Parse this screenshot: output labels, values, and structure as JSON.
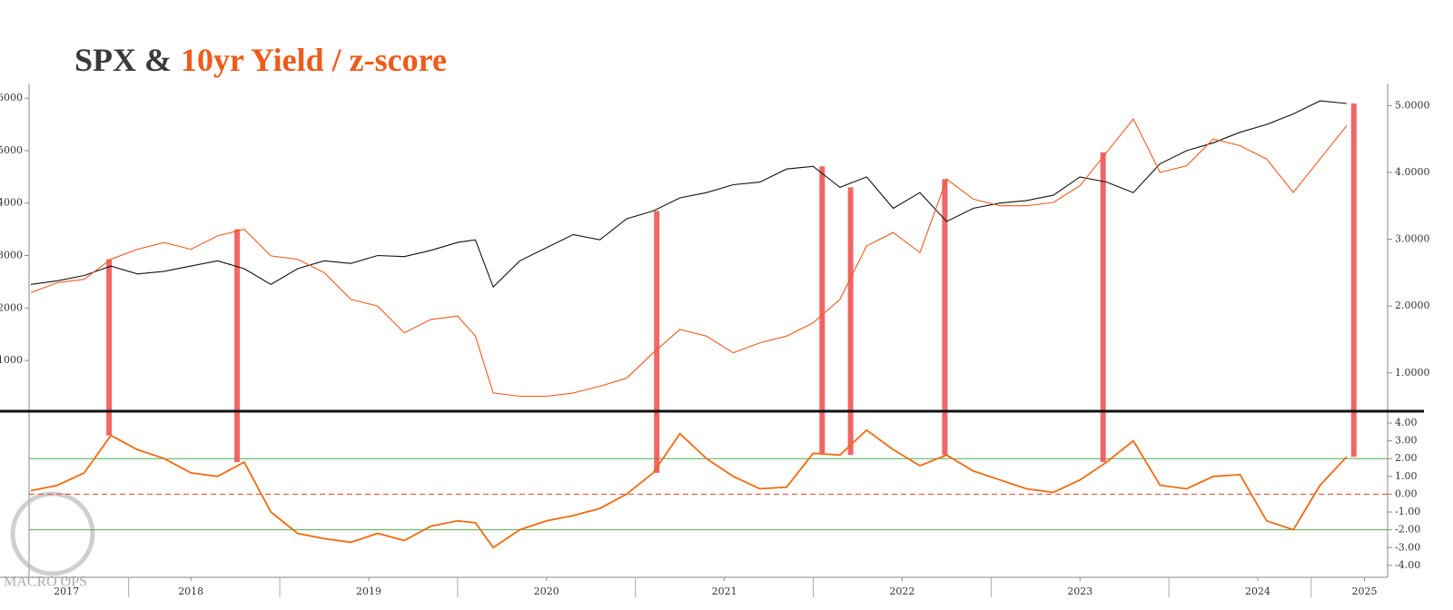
{
  "chart_data": [
    {
      "type": "line",
      "title": "SPX &",
      "subtitle": "10yr Yield / z-score",
      "x": [
        2017.6,
        2017.75,
        2017.9,
        2018.05,
        2018.2,
        2018.35,
        2018.5,
        2018.65,
        2018.8,
        2018.95,
        2019.1,
        2019.25,
        2019.4,
        2019.55,
        2019.7,
        2019.85,
        2020.0,
        2020.1,
        2020.2,
        2020.35,
        2020.5,
        2020.65,
        2020.8,
        2020.95,
        2021.1,
        2021.25,
        2021.4,
        2021.55,
        2021.7,
        2021.85,
        2022.0,
        2022.15,
        2022.3,
        2022.45,
        2022.6,
        2022.75,
        2022.9,
        2023.05,
        2023.2,
        2023.35,
        2023.5,
        2023.65,
        2023.8,
        2023.95,
        2024.1,
        2024.25,
        2024.4,
        2024.55,
        2024.7,
        2024.85,
        2025.0
      ],
      "xlim": [
        2017.59,
        2025.23
      ],
      "series": [
        {
          "color": "#111111",
          "axis": "y",
          "values": [
            2450,
            2520,
            2620,
            2800,
            2650,
            2700,
            2800,
            2900,
            2750,
            2450,
            2750,
            2900,
            2850,
            3000,
            2980,
            3100,
            3250,
            3300,
            2400,
            2900,
            3150,
            3400,
            3300,
            3700,
            3850,
            4100,
            4200,
            4350,
            4400,
            4650,
            4700,
            4300,
            4500,
            3900,
            4200,
            3650,
            3900,
            4000,
            4050,
            4150,
            4500,
            4400,
            4200,
            4750,
            5000,
            5150,
            5350,
            5500,
            5700,
            5950,
            5900
          ]
        },
        {
          "color": "#f05a1a",
          "axis": "y2",
          "values": [
            2.2,
            2.35,
            2.4,
            2.7,
            2.85,
            2.95,
            2.85,
            3.05,
            3.15,
            2.75,
            2.7,
            2.5,
            2.1,
            2.0,
            1.6,
            1.8,
            1.85,
            1.55,
            0.7,
            0.65,
            0.65,
            0.7,
            0.8,
            0.92,
            1.3,
            1.65,
            1.55,
            1.3,
            1.45,
            1.55,
            1.75,
            2.1,
            2.9,
            3.1,
            2.8,
            3.9,
            3.6,
            3.5,
            3.5,
            3.55,
            3.8,
            4.3,
            4.8,
            4.0,
            4.1,
            4.5,
            4.4,
            4.2,
            3.7,
            4.2,
            4.7
          ]
        }
      ],
      "ylim": [
        50,
        6280
      ],
      "yticks": [
        1000,
        2000,
        3000,
        4000,
        5000,
        6000
      ],
      "y2lim": [
        0.44,
        5.33
      ],
      "y2ticks": [
        {
          "value": 1,
          "label": "1.0000"
        },
        {
          "value": 2,
          "label": "2.0000"
        },
        {
          "value": 3,
          "label": "3.0000"
        },
        {
          "value": 4,
          "label": "4.0000"
        },
        {
          "value": 5,
          "label": "5.0000"
        }
      ],
      "signals": {
        "color": "#ee4b4b",
        "x": [
          2018.04,
          2018.76,
          2021.12,
          2022.05,
          2022.21,
          2022.74,
          2023.63,
          2025.04
        ]
      }
    },
    {
      "type": "line",
      "x": [
        2017.6,
        2017.75,
        2017.9,
        2018.05,
        2018.2,
        2018.35,
        2018.5,
        2018.65,
        2018.8,
        2018.95,
        2019.1,
        2019.25,
        2019.4,
        2019.55,
        2019.7,
        2019.85,
        2020.0,
        2020.1,
        2020.2,
        2020.35,
        2020.5,
        2020.65,
        2020.8,
        2020.95,
        2021.1,
        2021.25,
        2021.4,
        2021.55,
        2021.7,
        2021.85,
        2022.0,
        2022.15,
        2022.3,
        2022.45,
        2022.6,
        2022.75,
        2022.9,
        2023.05,
        2023.2,
        2023.35,
        2023.5,
        2023.65,
        2023.8,
        2023.95,
        2024.1,
        2024.25,
        2024.4,
        2024.55,
        2024.7,
        2024.85,
        2025.0
      ],
      "xlim": [
        2017.59,
        2025.23
      ],
      "series": [
        {
          "color": "#f26a10",
          "values": [
            0.2,
            0.5,
            1.2,
            3.3,
            2.5,
            2.0,
            1.2,
            1.0,
            1.8,
            -1.0,
            -2.2,
            -2.5,
            -2.7,
            -2.2,
            -2.6,
            -1.8,
            -1.5,
            -1.6,
            -3.0,
            -2.0,
            -1.5,
            -1.2,
            -0.8,
            0.0,
            1.2,
            3.4,
            2.0,
            1.0,
            0.3,
            0.4,
            2.3,
            2.2,
            3.6,
            2.5,
            1.6,
            2.2,
            1.3,
            0.8,
            0.3,
            0.1,
            0.8,
            1.8,
            3.0,
            0.5,
            0.3,
            1.0,
            1.1,
            -1.5,
            -2.0,
            0.5,
            2.1
          ]
        }
      ],
      "ylim": [
        -4.67,
        4.56
      ],
      "yticks": [
        {
          "value": 4,
          "label": "4.00"
        },
        {
          "value": 3,
          "label": "3.00"
        },
        {
          "value": 2,
          "label": "2.00"
        },
        {
          "value": 1,
          "label": "1.00"
        },
        {
          "value": 0,
          "label": "0.00"
        },
        {
          "value": -1,
          "label": "-1.00"
        },
        {
          "value": -2,
          "label": "-2.00"
        },
        {
          "value": -3,
          "label": "-3.00"
        },
        {
          "value": -4,
          "label": "-4.00"
        }
      ],
      "hlines": [
        {
          "value": 2,
          "color": "#4caf50"
        },
        {
          "value": -2,
          "color": "#4caf50"
        },
        {
          "value": 0,
          "color": "#e8452a",
          "dashed": true
        }
      ],
      "xticks": [
        {
          "value": 2017.8,
          "label": "2017"
        },
        {
          "value": 2018.5,
          "label": "2018"
        },
        {
          "value": 2019.5,
          "label": "2019"
        },
        {
          "value": 2020.5,
          "label": "2020"
        },
        {
          "value": 2021.5,
          "label": "2021"
        },
        {
          "value": 2022.5,
          "label": "2022"
        },
        {
          "value": 2023.5,
          "label": "2023"
        },
        {
          "value": 2024.5,
          "label": "2024"
        },
        {
          "value": 2025.1,
          "label": "2025"
        }
      ],
      "watermark": "MACRO OPS"
    }
  ]
}
